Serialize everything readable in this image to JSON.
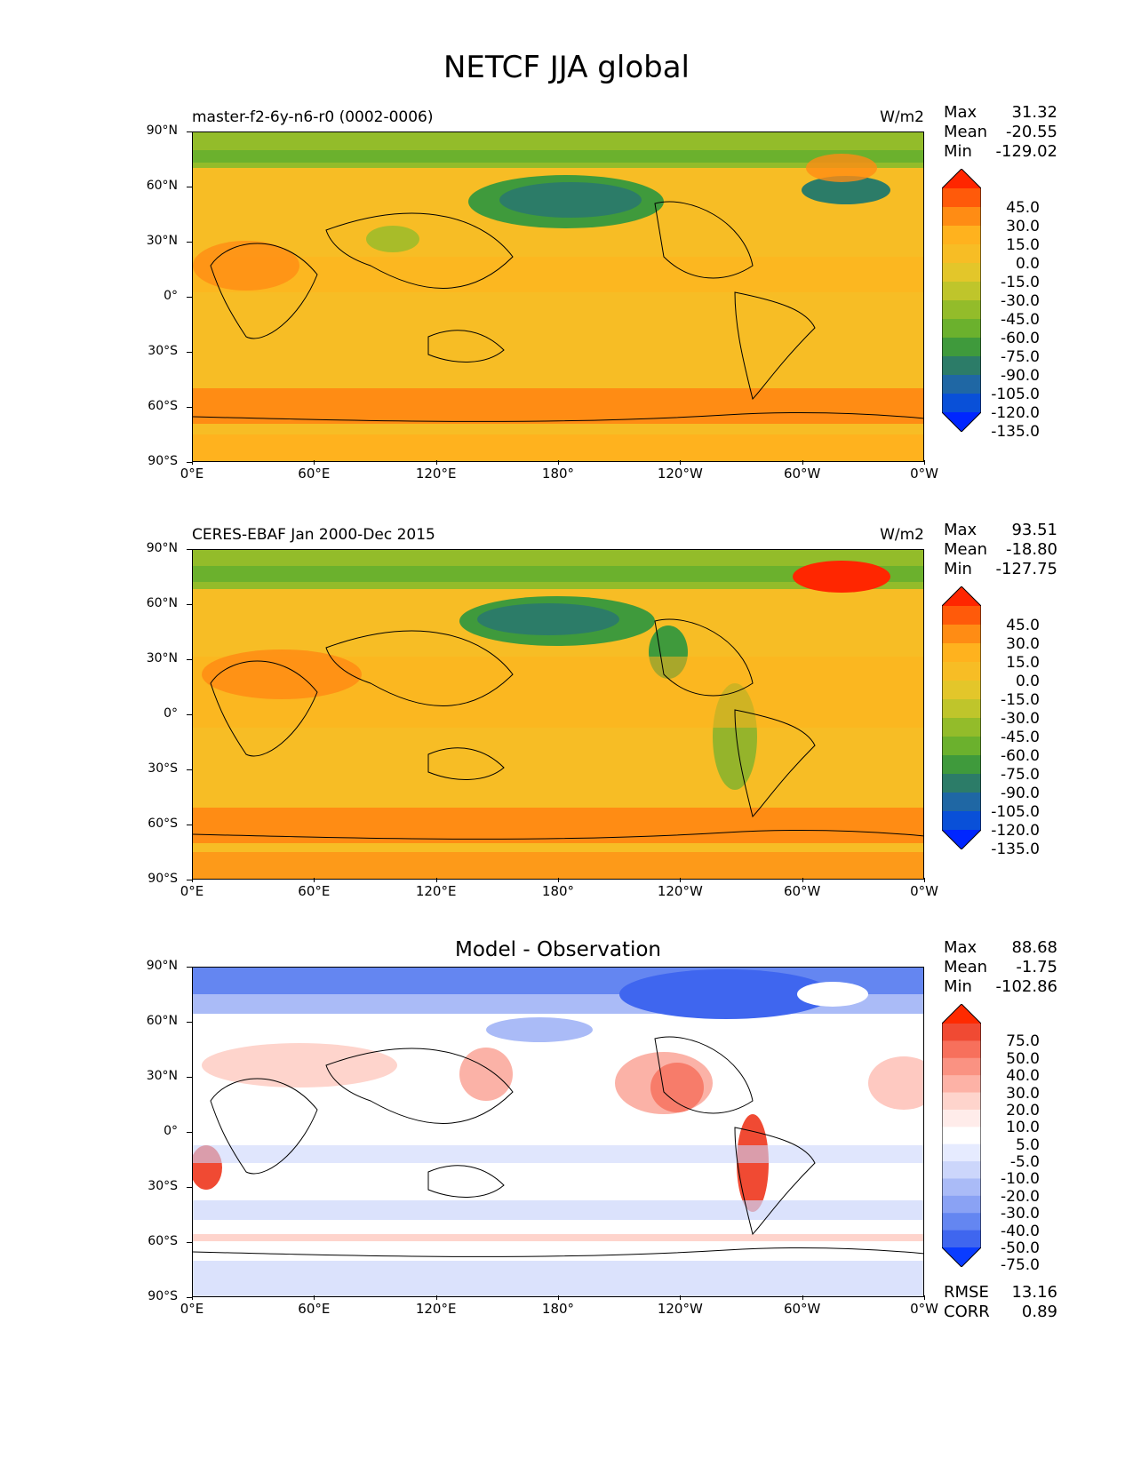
{
  "figure": {
    "title": "NETCF JJA global"
  },
  "axes": {
    "y_ticks": [
      "90°N",
      "60°N",
      "30°N",
      "0°",
      "30°S",
      "60°S",
      "90°S"
    ],
    "x_ticks": [
      "0°E",
      "60°E",
      "120°E",
      "180°",
      "120°W",
      "60°W",
      "0°W"
    ]
  },
  "panels": [
    {
      "title": "master-f2-6y-n6-r0 (0002-0006)",
      "units": "W/m2",
      "stats": {
        "max_label": "Max",
        "max": "31.32",
        "mean_label": "Mean",
        "mean": "-20.55",
        "min_label": "Min",
        "min": "-129.02"
      },
      "colorbar": {
        "labels": [
          "45.0",
          "30.0",
          "15.0",
          "0.0",
          "-15.0",
          "-30.0",
          "-45.0",
          "-60.0",
          "-75.0",
          "-90.0",
          "-105.0",
          "-120.0",
          "-135.0"
        ],
        "colors": [
          "#ff2600",
          "#ff5a0a",
          "#ff8c14",
          "#ffb21e",
          "#f7bd25",
          "#e3c62a",
          "#bfc52b",
          "#93bc2a",
          "#6bb12d",
          "#3f9a3c",
          "#2c7c68",
          "#1f67a4",
          "#0950d8",
          "#0026ff"
        ]
      }
    },
    {
      "title": "CERES-EBAF Jan 2000-Dec 2015",
      "units": "W/m2",
      "stats": {
        "max_label": "Max",
        "max": "93.51",
        "mean_label": "Mean",
        "mean": "-18.80",
        "min_label": "Min",
        "min": "-127.75"
      },
      "colorbar": {
        "labels": [
          "45.0",
          "30.0",
          "15.0",
          "0.0",
          "-15.0",
          "-30.0",
          "-45.0",
          "-60.0",
          "-75.0",
          "-90.0",
          "-105.0",
          "-120.0",
          "-135.0"
        ],
        "colors": [
          "#ff2600",
          "#ff5a0a",
          "#ff8c14",
          "#ffb21e",
          "#f7bd25",
          "#e3c62a",
          "#bfc52b",
          "#93bc2a",
          "#6bb12d",
          "#3f9a3c",
          "#2c7c68",
          "#1f67a4",
          "#0950d8",
          "#0026ff"
        ]
      }
    },
    {
      "title": "Model - Observation",
      "stats": {
        "max_label": "Max",
        "max": "88.68",
        "mean_label": "Mean",
        "mean": "-1.75",
        "min_label": "Min",
        "min": "-102.86"
      },
      "colorbar": {
        "labels": [
          "75.0",
          "50.0",
          "40.0",
          "30.0",
          "20.0",
          "10.0",
          "5.0",
          "-5.0",
          "-10.0",
          "-20.0",
          "-30.0",
          "-40.0",
          "-50.0",
          "-75.0"
        ],
        "colors": [
          "#ff2a00",
          "#f04a33",
          "#f7705c",
          "#fa9282",
          "#fdb2a6",
          "#fed4cc",
          "#ffecea",
          "#ffffff",
          "#e6ebff",
          "#ccd6fb",
          "#aabbf7",
          "#8aa2f4",
          "#6486f1",
          "#3f66ef",
          "#0a3cff"
        ]
      },
      "metrics": {
        "rmse_label": "RMSE",
        "rmse": "13.16",
        "corr_label": "CORR",
        "corr": "0.89"
      }
    }
  ]
}
